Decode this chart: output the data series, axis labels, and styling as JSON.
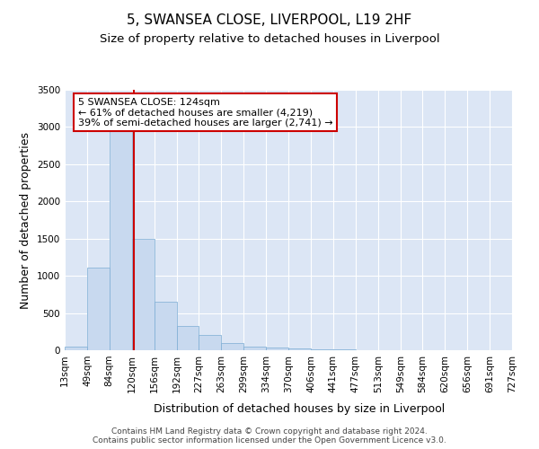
{
  "title": "5, SWANSEA CLOSE, LIVERPOOL, L19 2HF",
  "subtitle": "Size of property relative to detached houses in Liverpool",
  "xlabel": "Distribution of detached houses by size in Liverpool",
  "ylabel": "Number of detached properties",
  "footer_line1": "Contains HM Land Registry data © Crown copyright and database right 2024.",
  "footer_line2": "Contains public sector information licensed under the Open Government Licence v3.0.",
  "property_label": "5 SWANSEA CLOSE: 124sqm",
  "annotation_line1": "← 61% of detached houses are smaller (4,219)",
  "annotation_line2": "39% of semi-detached houses are larger (2,741) →",
  "property_size": 124,
  "bin_edges": [
    13,
    49,
    84,
    120,
    156,
    192,
    227,
    263,
    299,
    334,
    370,
    406,
    441,
    477,
    513,
    549,
    584,
    620,
    656,
    691,
    727
  ],
  "bar_heights": [
    45,
    1110,
    2950,
    1500,
    650,
    330,
    200,
    100,
    50,
    35,
    20,
    15,
    10,
    5,
    3,
    2,
    1,
    1,
    1,
    1
  ],
  "bar_color": "#c8d9ef",
  "bar_edge_color": "#7bacd4",
  "vline_color": "#cc0000",
  "vline_x": 124,
  "ylim": [
    0,
    3500
  ],
  "yticks": [
    0,
    500,
    1000,
    1500,
    2000,
    2500,
    3000,
    3500
  ],
  "background_color": "#ffffff",
  "plot_background": "#dce6f5",
  "grid_color": "#ffffff",
  "title_fontsize": 11,
  "subtitle_fontsize": 9.5,
  "axis_label_fontsize": 9,
  "tick_fontsize": 7.5,
  "annotation_fontsize": 8,
  "footer_fontsize": 6.5
}
